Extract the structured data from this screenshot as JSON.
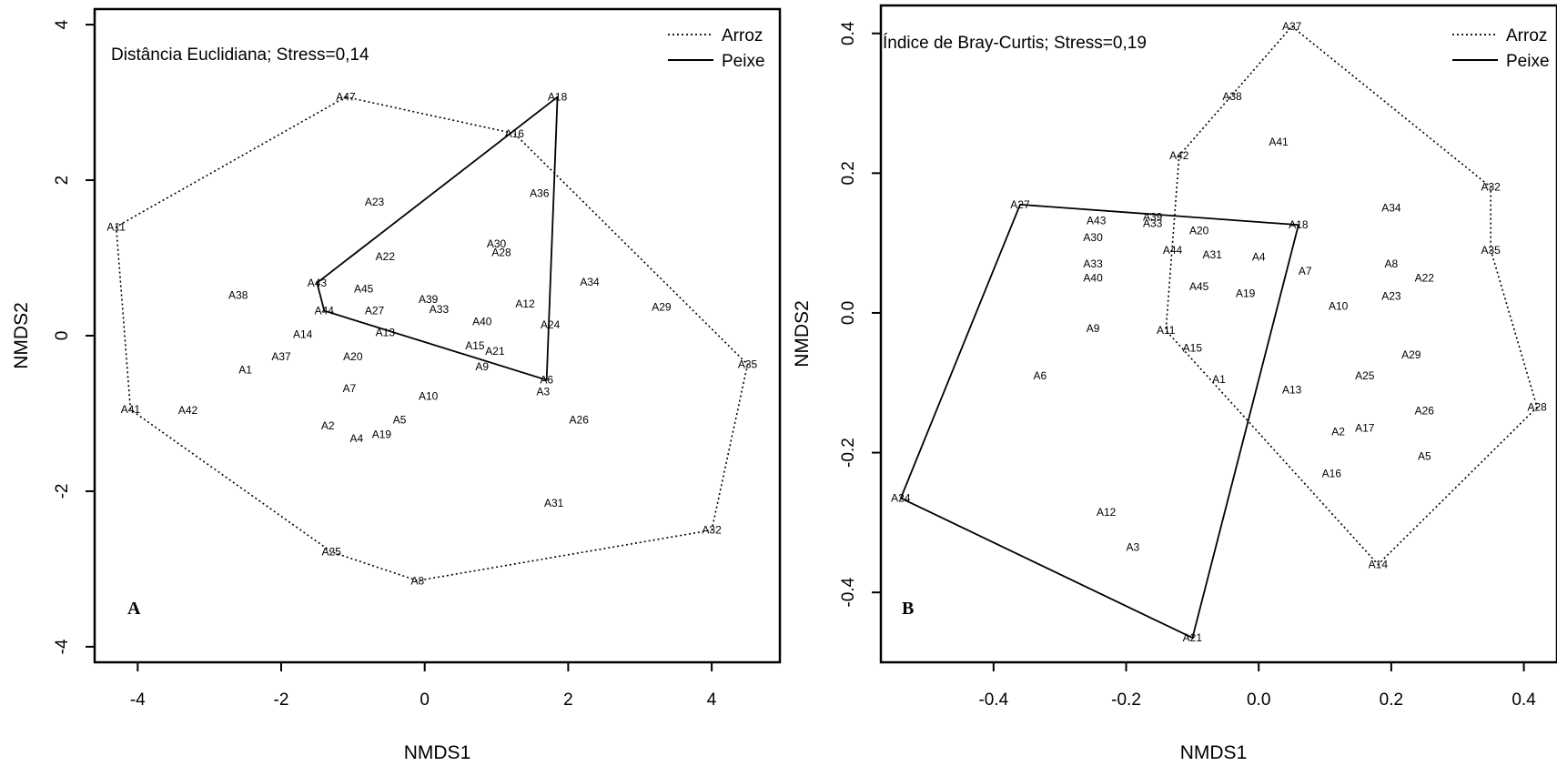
{
  "chart_data": [
    {
      "type": "scatter",
      "panel_label": "A",
      "annotation": "Distância Euclidiana; Stress=0,14",
      "xlabel": "NMDS1",
      "ylabel": "NMDS2",
      "xlim": [
        -4.6,
        4.95
      ],
      "ylim": [
        -4.2,
        4.2
      ],
      "xticks": [
        -4,
        -2,
        0,
        2,
        4
      ],
      "yticks": [
        -4,
        -2,
        0,
        2,
        4
      ],
      "xtick_labels": [
        "-4",
        "-2",
        "0",
        "2",
        "4"
      ],
      "ytick_labels": [
        "-4",
        "-2",
        "0",
        "2",
        "4"
      ],
      "legend": {
        "position": "top-right",
        "entries": [
          {
            "label": "Arroz",
            "style": "dotted"
          },
          {
            "label": "Peixe",
            "style": "solid"
          }
        ]
      },
      "points": [
        {
          "label": "A47",
          "x": -1.1,
          "y": 3.07
        },
        {
          "label": "A18",
          "x": 1.85,
          "y": 3.07
        },
        {
          "label": "A16",
          "x": 1.25,
          "y": 2.6
        },
        {
          "label": "A36",
          "x": 1.6,
          "y": 1.83
        },
        {
          "label": "A23",
          "x": -0.7,
          "y": 1.72
        },
        {
          "label": "A11",
          "x": -4.3,
          "y": 1.4
        },
        {
          "label": "A30",
          "x": 1.0,
          "y": 1.18
        },
        {
          "label": "A28",
          "x": 1.07,
          "y": 1.07
        },
        {
          "label": "A22",
          "x": -0.55,
          "y": 1.02
        },
        {
          "label": "A43",
          "x": -1.5,
          "y": 0.68
        },
        {
          "label": "A34",
          "x": 2.3,
          "y": 0.69
        },
        {
          "label": "A45",
          "x": -0.85,
          "y": 0.6
        },
        {
          "label": "A38",
          "x": -2.6,
          "y": 0.52
        },
        {
          "label": "A39",
          "x": 0.05,
          "y": 0.47
        },
        {
          "label": "A12",
          "x": 1.4,
          "y": 0.41
        },
        {
          "label": "A29",
          "x": 3.3,
          "y": 0.37
        },
        {
          "label": "A44",
          "x": -1.4,
          "y": 0.32
        },
        {
          "label": "A27",
          "x": -0.7,
          "y": 0.32
        },
        {
          "label": "A33",
          "x": 0.2,
          "y": 0.34
        },
        {
          "label": "A40",
          "x": 0.8,
          "y": 0.18
        },
        {
          "label": "A24",
          "x": 1.75,
          "y": 0.14
        },
        {
          "label": "A14",
          "x": -1.7,
          "y": 0.02
        },
        {
          "label": "A13",
          "x": -0.55,
          "y": 0.04
        },
        {
          "label": "A15",
          "x": 0.7,
          "y": -0.13
        },
        {
          "label": "A21",
          "x": 0.98,
          "y": -0.2
        },
        {
          "label": "A37",
          "x": -2.0,
          "y": -0.27
        },
        {
          "label": "A20",
          "x": -1.0,
          "y": -0.27
        },
        {
          "label": "A9",
          "x": 0.8,
          "y": -0.4
        },
        {
          "label": "A1",
          "x": -2.5,
          "y": -0.44
        },
        {
          "label": "A35",
          "x": 4.5,
          "y": -0.37
        },
        {
          "label": "A6",
          "x": 1.7,
          "y": -0.57
        },
        {
          "label": "A3",
          "x": 1.65,
          "y": -0.72
        },
        {
          "label": "A7",
          "x": -1.05,
          "y": -0.68
        },
        {
          "label": "A10",
          "x": 0.05,
          "y": -0.78
        },
        {
          "label": "A41",
          "x": -4.1,
          "y": -0.95
        },
        {
          "label": "A42",
          "x": -3.3,
          "y": -0.96
        },
        {
          "label": "A26",
          "x": 2.15,
          "y": -1.08
        },
        {
          "label": "A5",
          "x": -0.35,
          "y": -1.08
        },
        {
          "label": "A2",
          "x": -1.35,
          "y": -1.16
        },
        {
          "label": "A19",
          "x": -0.6,
          "y": -1.27
        },
        {
          "label": "A4",
          "x": -0.95,
          "y": -1.32
        },
        {
          "label": "A31",
          "x": 1.8,
          "y": -2.15
        },
        {
          "label": "A32",
          "x": 4.0,
          "y": -2.5
        },
        {
          "label": "A25",
          "x": -1.3,
          "y": -2.78
        },
        {
          "label": "A8",
          "x": -0.1,
          "y": -3.15
        }
      ],
      "hulls": [
        {
          "name": "Arroz",
          "style": "dotted",
          "vertices": [
            "A47",
            "A16",
            "A35",
            "A32",
            "A8",
            "A25",
            "A41",
            "A11"
          ]
        },
        {
          "name": "Peixe",
          "style": "solid",
          "vertices": [
            "A43",
            "A18",
            "A6",
            "A44"
          ]
        }
      ]
    },
    {
      "type": "scatter",
      "panel_label": "B",
      "annotation": "Índice de Bray-Curtis; Stress=0,19",
      "xlabel": "NMDS1",
      "ylabel": "NMDS2",
      "xlim": [
        -0.57,
        0.45
      ],
      "ylim": [
        -0.5,
        0.44
      ],
      "xticks": [
        -0.4,
        -0.2,
        0.0,
        0.2,
        0.4
      ],
      "yticks": [
        -0.4,
        -0.2,
        0.0,
        0.2,
        0.4
      ],
      "xtick_labels": [
        "-0.4",
        "-0.2",
        "0.0",
        "0.2",
        "0.4"
      ],
      "ytick_labels": [
        "-0.4",
        "-0.2",
        "0.0",
        "0.2",
        "0.4"
      ],
      "legend": {
        "position": "top-right",
        "entries": [
          {
            "label": "Arroz",
            "style": "dotted"
          },
          {
            "label": "Peixe",
            "style": "solid"
          }
        ]
      },
      "points": [
        {
          "label": "A37",
          "x": 0.05,
          "y": 0.41
        },
        {
          "label": "A38",
          "x": -0.04,
          "y": 0.31
        },
        {
          "label": "A41",
          "x": 0.03,
          "y": 0.245
        },
        {
          "label": "A42",
          "x": -0.12,
          "y": 0.225
        },
        {
          "label": "A32",
          "x": 0.35,
          "y": 0.18
        },
        {
          "label": "A27",
          "x": -0.36,
          "y": 0.155
        },
        {
          "label": "A34",
          "x": 0.2,
          "y": 0.15
        },
        {
          "label": "A43",
          "x": -0.245,
          "y": 0.132
        },
        {
          "label": "A39",
          "x": -0.16,
          "y": 0.137
        },
        {
          "label": "A33",
          "x": -0.16,
          "y": 0.128
        },
        {
          "label": "A18",
          "x": 0.06,
          "y": 0.126
        },
        {
          "label": "A20",
          "x": -0.09,
          "y": 0.118
        },
        {
          "label": "A30",
          "x": -0.25,
          "y": 0.108
        },
        {
          "label": "A44",
          "x": -0.13,
          "y": 0.09
        },
        {
          "label": "A31",
          "x": -0.07,
          "y": 0.083
        },
        {
          "label": "A4",
          "x": 0.0,
          "y": 0.08
        },
        {
          "label": "A35",
          "x": 0.35,
          "y": 0.09
        },
        {
          "label": "A8",
          "x": 0.2,
          "y": 0.07
        },
        {
          "label": "A7",
          "x": 0.07,
          "y": 0.06
        },
        {
          "label": "A33",
          "x": -0.25,
          "y": 0.07
        },
        {
          "label": "A22",
          "x": 0.25,
          "y": 0.05
        },
        {
          "label": "A40",
          "x": -0.25,
          "y": 0.05
        },
        {
          "label": "A45",
          "x": -0.09,
          "y": 0.038
        },
        {
          "label": "A19",
          "x": -0.02,
          "y": 0.028
        },
        {
          "label": "A23",
          "x": 0.2,
          "y": 0.024
        },
        {
          "label": "A10",
          "x": 0.12,
          "y": 0.01
        },
        {
          "label": "A9",
          "x": -0.25,
          "y": -0.022
        },
        {
          "label": "A11",
          "x": -0.14,
          "y": -0.025
        },
        {
          "label": "A15",
          "x": -0.1,
          "y": -0.05
        },
        {
          "label": "A29",
          "x": 0.23,
          "y": -0.06
        },
        {
          "label": "A6",
          "x": -0.33,
          "y": -0.09
        },
        {
          "label": "A25",
          "x": 0.16,
          "y": -0.09
        },
        {
          "label": "A1",
          "x": -0.06,
          "y": -0.095
        },
        {
          "label": "A13",
          "x": 0.05,
          "y": -0.11
        },
        {
          "label": "A26",
          "x": 0.25,
          "y": -0.14
        },
        {
          "label": "A28",
          "x": 0.42,
          "y": -0.135
        },
        {
          "label": "A17",
          "x": 0.16,
          "y": -0.165
        },
        {
          "label": "A2",
          "x": 0.12,
          "y": -0.17
        },
        {
          "label": "A5",
          "x": 0.25,
          "y": -0.205
        },
        {
          "label": "A16",
          "x": 0.11,
          "y": -0.23
        },
        {
          "label": "A24",
          "x": -0.54,
          "y": -0.265
        },
        {
          "label": "A12",
          "x": -0.23,
          "y": -0.285
        },
        {
          "label": "A3",
          "x": -0.19,
          "y": -0.335
        },
        {
          "label": "A14",
          "x": 0.18,
          "y": -0.36
        },
        {
          "label": "A21",
          "x": -0.1,
          "y": -0.465
        }
      ],
      "hulls": [
        {
          "name": "Arroz",
          "style": "dotted",
          "vertices": [
            "A37",
            "A32",
            "A35",
            "A28",
            "A14",
            "A11",
            "A42"
          ]
        },
        {
          "name": "Peixe",
          "style": "solid",
          "vertices": [
            "A27",
            "A18",
            "A21",
            "A24"
          ]
        }
      ]
    }
  ]
}
